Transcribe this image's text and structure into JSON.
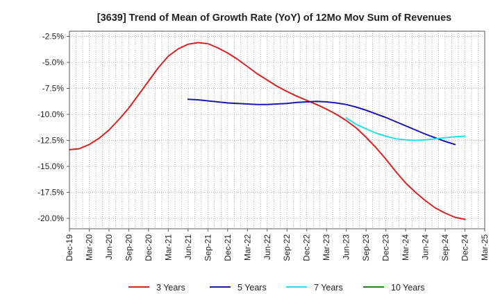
{
  "chart_data": {
    "type": "line",
    "title": "[3639]  Trend of Mean of Growth Rate (YoY) of 12Mo Mov Sum of Revenues",
    "xlabel": "",
    "ylabel": "",
    "ylim": [
      -21,
      -2
    ],
    "yticks": [
      -2.5,
      -5.0,
      -7.5,
      -10.0,
      -12.5,
      -15.0,
      -17.5,
      -20.0
    ],
    "ytick_labels": [
      "-2.5%",
      "-5.0%",
      "-7.5%",
      "-10.0%",
      "-12.5%",
      "-15.0%",
      "-17.5%",
      "-20.0%"
    ],
    "xtick_labels": [
      "Dec-19",
      "Mar-20",
      "Jun-20",
      "Sep-20",
      "Dec-20",
      "Mar-21",
      "Jun-21",
      "Sep-21",
      "Dec-21",
      "Mar-22",
      "Jun-22",
      "Sep-22",
      "Dec-22",
      "Mar-23",
      "Jun-23",
      "Sep-23",
      "Dec-23",
      "Mar-24",
      "Jun-24",
      "Sep-24",
      "Dec-24",
      "Mar-25"
    ],
    "grid": true,
    "legend_position": "bottom",
    "series": [
      {
        "name": "3 Years",
        "color": "#dd1f1f",
        "start_index": 0,
        "values": [
          -13.4,
          -13.3,
          -12.9,
          -12.3,
          -11.5,
          -10.5,
          -9.4,
          -8.1,
          -6.8,
          -5.5,
          -4.4,
          -3.7,
          -3.25,
          -3.1,
          -3.2,
          -3.6,
          -4.1,
          -4.7,
          -5.4,
          -6.1,
          -6.7,
          -7.3,
          -7.8,
          -8.25,
          -8.65,
          -9.05,
          -9.5,
          -10.0,
          -10.6,
          -11.3,
          -12.2,
          -13.2,
          -14.3,
          -15.5,
          -16.6,
          -17.5,
          -18.3,
          -19.0,
          -19.5,
          -19.9,
          -20.1
        ]
      },
      {
        "name": "5 Years",
        "color": "#1515b8",
        "start_index": 12,
        "values": [
          -8.55,
          -8.6,
          -8.7,
          -8.8,
          -8.9,
          -8.95,
          -9.0,
          -9.05,
          -9.05,
          -9.0,
          -8.95,
          -8.85,
          -8.8,
          -8.75,
          -8.8,
          -8.9,
          -9.05,
          -9.3,
          -9.6,
          -9.95,
          -10.3,
          -10.7,
          -11.1,
          -11.5,
          -11.9,
          -12.25,
          -12.6,
          -12.9
        ]
      },
      {
        "name": "7 Years",
        "color": "#22e0ea",
        "start_index": 28,
        "values": [
          -10.35,
          -10.95,
          -11.4,
          -11.8,
          -12.1,
          -12.35,
          -12.45,
          -12.5,
          -12.45,
          -12.35,
          -12.25,
          -12.15,
          -12.1
        ]
      },
      {
        "name": "10 Years",
        "color": "#1a8a1a",
        "start_index": 0,
        "values": []
      }
    ]
  }
}
